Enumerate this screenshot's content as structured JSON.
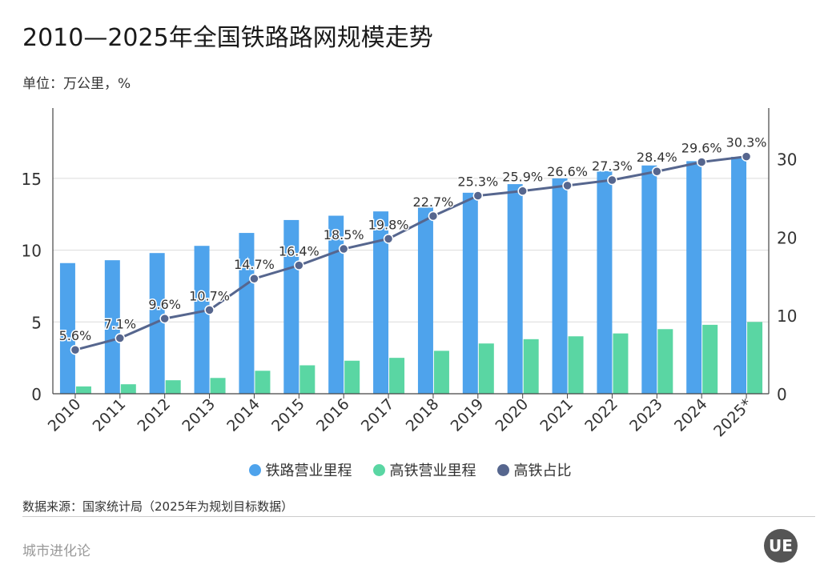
{
  "title": "2010—2025年全国铁路路网规模走势",
  "unit": "单位：万公里，%",
  "source": "数据来源：国家统计局（2025年为规划目标数据）",
  "brand": "城市进化论",
  "logo_text": "UE",
  "chart_data": {
    "type": "bar",
    "categories": [
      "2010",
      "2011",
      "2012",
      "2013",
      "2014",
      "2015",
      "2016",
      "2017",
      "2018",
      "2019",
      "2020",
      "2021",
      "2022",
      "2023",
      "2024",
      "2025*"
    ],
    "series": [
      {
        "name": "铁路营业里程",
        "type": "bar",
        "axis": "left",
        "color": "#4ea3ec",
        "values": [
          9.1,
          9.3,
          9.8,
          10.3,
          11.2,
          12.1,
          12.4,
          12.7,
          13.1,
          14.0,
          14.6,
          15.0,
          15.5,
          15.9,
          16.2,
          16.5
        ]
      },
      {
        "name": "高铁营业里程",
        "type": "bar",
        "axis": "left",
        "color": "#5ad6a3",
        "values": [
          0.51,
          0.66,
          0.94,
          1.1,
          1.6,
          1.98,
          2.3,
          2.5,
          2.99,
          3.5,
          3.8,
          4.0,
          4.2,
          4.5,
          4.8,
          5.0
        ]
      },
      {
        "name": "高铁占比",
        "type": "line",
        "axis": "right",
        "color": "#56668e",
        "values": [
          5.6,
          7.1,
          9.6,
          10.7,
          14.7,
          16.4,
          18.5,
          19.8,
          22.7,
          25.3,
          25.9,
          26.6,
          27.3,
          28.4,
          29.6,
          30.3
        ],
        "labels": [
          "5.6%",
          "7.1%",
          "9.6%",
          "10.7%",
          "14.7%",
          "16.4%",
          "18.5%",
          "19.8%",
          "22.7%",
          "25.3%",
          "25.9%",
          "26.6%",
          "27.3%",
          "28.4%",
          "29.6%",
          "30.3%"
        ]
      }
    ],
    "y_left": {
      "ylim": [
        0,
        19.9
      ],
      "ticks": [
        0,
        5,
        10,
        15
      ]
    },
    "y_right": {
      "ylim": [
        0,
        36.5
      ],
      "ticks": [
        0,
        10,
        20,
        30
      ]
    },
    "grid": true,
    "legend": "bottom-center"
  }
}
